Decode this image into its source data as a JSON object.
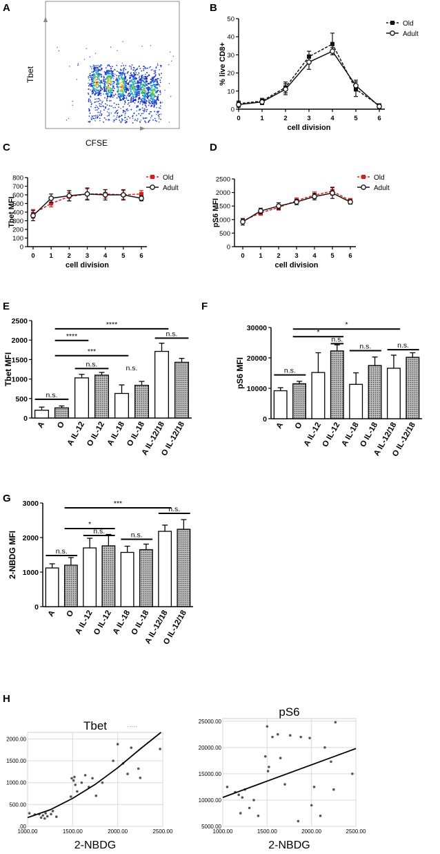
{
  "panels": {
    "A": {
      "letter": "A",
      "ylabel": "Tbet",
      "xlabel": "CFSE"
    },
    "B": {
      "letter": "B"
    },
    "C": {
      "letter": "C"
    },
    "D": {
      "letter": "D"
    },
    "E": {
      "letter": "E"
    },
    "F": {
      "letter": "F"
    },
    "G": {
      "letter": "G"
    },
    "H": {
      "letter": "H"
    }
  },
  "colors": {
    "old_red": "#d62020",
    "black": "#111111",
    "dot": "#555555"
  },
  "chart_data": [
    {
      "id": "A",
      "type": "scatter",
      "description_none": "",
      "title": "",
      "xlabel": "CFSE",
      "ylabel": "Tbet"
    },
    {
      "id": "B",
      "type": "line",
      "title": "",
      "xlabel": "cell division",
      "ylabel": "% live CD8+",
      "x": [
        0,
        1,
        2,
        3,
        4,
        5,
        6
      ],
      "xlim": [
        0,
        6
      ],
      "ylim": [
        0,
        50
      ],
      "yticks": [
        0,
        10,
        20,
        30,
        40,
        50
      ],
      "series": [
        {
          "name": "Old",
          "values": [
            3,
            4.5,
            12,
            29,
            36,
            11,
            2
          ],
          "err": [
            1.5,
            1.5,
            3,
            3,
            6,
            4,
            1
          ],
          "style": "dashed",
          "marker": "filled-square",
          "color": "#111111"
        },
        {
          "name": "Adult",
          "values": [
            2.5,
            4,
            11,
            26,
            32,
            13,
            1.5
          ],
          "err": [
            1.5,
            1.5,
            3,
            4,
            2,
            3,
            1
          ],
          "style": "solid",
          "marker": "open-circle",
          "color": "#111111"
        }
      ]
    },
    {
      "id": "C",
      "type": "line",
      "title": "",
      "xlabel": "cell division",
      "ylabel": "Tbet MFI",
      "x": [
        0,
        1,
        2,
        3,
        4,
        5,
        6
      ],
      "xlim": [
        0,
        6
      ],
      "ylim": [
        0,
        800
      ],
      "yticks": [
        0,
        100,
        200,
        300,
        400,
        500,
        600,
        700,
        800
      ],
      "series": [
        {
          "name": "Old",
          "values": [
            380,
            500,
            580,
            610,
            610,
            600,
            610
          ],
          "err": [
            50,
            40,
            50,
            60,
            50,
            50,
            40
          ],
          "style": "dashed",
          "marker": "filled-square",
          "color": "#d62020"
        },
        {
          "name": "Adult",
          "values": [
            360,
            560,
            590,
            610,
            600,
            600,
            560
          ],
          "err": [
            60,
            50,
            60,
            70,
            60,
            60,
            30
          ],
          "style": "solid",
          "marker": "open-circle",
          "color": "#111111"
        }
      ]
    },
    {
      "id": "D",
      "type": "line",
      "title": "",
      "xlabel": "cell division",
      "ylabel": "pS6 MFI",
      "x": [
        0,
        1,
        2,
        3,
        4,
        5,
        6
      ],
      "xlim": [
        0,
        6
      ],
      "ylim": [
        0,
        2500
      ],
      "yticks": [
        0,
        500,
        1000,
        1500,
        2000,
        2500
      ],
      "series": [
        {
          "name": "Old",
          "values": [
            950,
            1250,
            1450,
            1700,
            1900,
            2050,
            1700
          ],
          "err": [
            80,
            90,
            100,
            100,
            120,
            150,
            80
          ],
          "style": "dashed",
          "marker": "filled-square",
          "color": "#d62020"
        },
        {
          "name": "Adult",
          "values": [
            920,
            1320,
            1500,
            1650,
            1850,
            1980,
            1650
          ],
          "err": [
            120,
            100,
            120,
            100,
            120,
            200,
            80
          ],
          "style": "solid",
          "marker": "open-circle",
          "color": "#111111"
        }
      ]
    },
    {
      "id": "E",
      "type": "bar",
      "title": "",
      "xlabel": "",
      "ylabel": "Tbet MFI",
      "categories": [
        "A",
        "O",
        "A IL-12",
        "O IL-12",
        "A IL-18",
        "O IL-18",
        "A IL-12/18",
        "O IL-12/18"
      ],
      "values": [
        200,
        260,
        1030,
        1100,
        630,
        840,
        1710,
        1430
      ],
      "err": [
        80,
        50,
        90,
        70,
        220,
        100,
        210,
        100
      ],
      "patterned": [
        false,
        true,
        false,
        true,
        false,
        true,
        false,
        true
      ],
      "ylim": [
        0,
        2500
      ],
      "yticks": [
        0,
        500,
        1000,
        1500,
        2000,
        2500
      ],
      "sig": [
        {
          "from": 0,
          "to": 1,
          "label": "n.s.",
          "y": 480
        },
        {
          "from": 2,
          "to": 3,
          "label": "n.s.",
          "y": 1270
        },
        {
          "from": 1,
          "to": 2,
          "label": "****",
          "y": 1990
        },
        {
          "from": 1,
          "to": 4,
          "label": "***",
          "y": 1600
        },
        {
          "from": 1,
          "to": 6,
          "label": "****",
          "y": 2290
        },
        {
          "from": 6,
          "to": 7,
          "label": "n.s.",
          "y": 2050
        }
      ],
      "free_labels": [
        {
          "at": 4.5,
          "label": "n.s.",
          "y": 1220
        }
      ]
    },
    {
      "id": "F",
      "type": "bar",
      "title": "",
      "xlabel": "",
      "ylabel": "pS6 MFI",
      "categories": [
        "A",
        "O",
        "A IL-12",
        "O IL-12",
        "A IL-18",
        "O IL-18",
        "A IL-12/18",
        "O IL-12/18"
      ],
      "values": [
        9200,
        11500,
        15200,
        22300,
        11300,
        17500,
        16600,
        20200
      ],
      "err": [
        1000,
        800,
        6500,
        2000,
        3800,
        2800,
        4300,
        1500
      ],
      "patterned": [
        false,
        true,
        false,
        true,
        false,
        true,
        false,
        true
      ],
      "ylim": [
        0,
        30000
      ],
      "yticks": [
        0,
        10000,
        20000,
        30000
      ],
      "sig": [
        {
          "from": 0,
          "to": 1,
          "label": "n.s.",
          "y": 14400
        },
        {
          "from": 3,
          "to": 3.0,
          "label": "n.s.",
          "y": 24700
        },
        {
          "from": 4,
          "to": 5,
          "label": "n.s.",
          "y": 22400
        },
        {
          "from": 6,
          "to": 7,
          "label": "n.s.",
          "y": 22700
        },
        {
          "from": 1,
          "to": 3,
          "label": "*",
          "y": 27000
        },
        {
          "from": 1,
          "to": 6,
          "label": "*",
          "y": 29500
        }
      ]
    },
    {
      "id": "G",
      "type": "bar",
      "title": "",
      "xlabel": "",
      "ylabel": "2-NBDG MFI",
      "categories": [
        "A",
        "O",
        "A IL-12",
        "O IL-12",
        "A IL-18",
        "O IL-18",
        "A IL-12/18",
        "O IL-12/18"
      ],
      "values": [
        1120,
        1200,
        1700,
        1760,
        1570,
        1650,
        2180,
        2240
      ],
      "err": [
        120,
        220,
        280,
        330,
        180,
        160,
        180,
        280
      ],
      "patterned": [
        false,
        true,
        false,
        true,
        false,
        true,
        false,
        true
      ],
      "ylim": [
        0,
        3000
      ],
      "yticks": [
        0,
        1000,
        2000,
        3000
      ],
      "sig": [
        {
          "from": 0,
          "to": 1,
          "label": "n.s.",
          "y": 1480
        },
        {
          "from": 1,
          "to": 3,
          "label": "*",
          "y": 2260
        },
        {
          "from": 2,
          "to": 3,
          "label": "n.s.",
          "y": 2060
        },
        {
          "from": 4,
          "to": 5,
          "label": "n.s.",
          "y": 1950
        },
        {
          "from": 1,
          "to": 6,
          "label": "***",
          "y": 2860
        },
        {
          "from": 6,
          "to": 7,
          "label": "n.s.",
          "y": 2700
        }
      ]
    },
    {
      "id": "H1",
      "type": "scatter",
      "title": "Tbet",
      "xlabel": "2-NBDG",
      "ylabel": "",
      "xlim": [
        1000,
        2500
      ],
      "ylim": [
        0,
        2150
      ],
      "xticks": [
        1000,
        1500,
        2000,
        2500
      ],
      "yticks": [
        0,
        500,
        1000,
        1500,
        2000
      ],
      "xticklabels": [
        "1000.00",
        "1500.00",
        "2000.00",
        "2500.00"
      ],
      "yticklabels": [
        ".00",
        "500.00",
        "1000.00",
        "1500.00",
        "2000.00"
      ],
      "x": [
        1020,
        1080,
        1130,
        1150,
        1170,
        1190,
        1200,
        1220,
        1260,
        1280,
        1320,
        1480,
        1490,
        1510,
        1520,
        1530,
        1550,
        1600,
        1640,
        1680,
        1720,
        1760,
        1830,
        1950,
        2000,
        2060,
        2110,
        2150,
        2230,
        2250,
        2470
      ],
      "y": [
        300,
        270,
        280,
        200,
        250,
        180,
        300,
        230,
        280,
        350,
        220,
        680,
        1100,
        1050,
        1130,
        950,
        800,
        1000,
        1170,
        900,
        1100,
        700,
        1000,
        1500,
        1880,
        1440,
        1200,
        1800,
        1320,
        1110,
        1770
      ],
      "fit": {
        "type": "exponential",
        "x": [
          1000,
          1250,
          1500,
          1750,
          2000,
          2250,
          2480
        ],
        "y": [
          200,
          380,
          640,
          960,
          1340,
          1770,
          2150
        ]
      },
      "annotation": "·····"
    },
    {
      "id": "H2",
      "type": "scatter",
      "title": "pS6",
      "xlabel": "2-NBDG",
      "ylabel": "",
      "xlim": [
        1000,
        2500
      ],
      "ylim": [
        5000,
        25500
      ],
      "xticks": [
        1000,
        1500,
        2000,
        2500
      ],
      "yticks": [
        5000,
        10000,
        15000,
        20000,
        25000
      ],
      "xticklabels": [
        "1000.00",
        "1500.00",
        "2000.00",
        "2500.00"
      ],
      "yticklabels": [
        "5000.00",
        "10000.00",
        "15000.00",
        "20000.00",
        "25000.00"
      ],
      "x": [
        1050,
        1140,
        1180,
        1200,
        1220,
        1250,
        1300,
        1350,
        1400,
        1480,
        1500,
        1510,
        1520,
        1560,
        1620,
        1650,
        1700,
        1760,
        1850,
        1880,
        1980,
        2000,
        2030,
        2100,
        2150,
        2220,
        2250,
        2270,
        2460
      ],
      "y": [
        12500,
        11500,
        11000,
        7500,
        10500,
        12000,
        8500,
        10000,
        7000,
        18300,
        24000,
        15500,
        16300,
        22000,
        22500,
        18000,
        13000,
        22300,
        6000,
        22000,
        21800,
        9000,
        12500,
        7000,
        20000,
        17300,
        12000,
        24800,
        15000
      ],
      "fit": {
        "type": "linear",
        "x": [
          1000,
          2500
        ],
        "y": [
          10500,
          19800
        ]
      }
    }
  ]
}
